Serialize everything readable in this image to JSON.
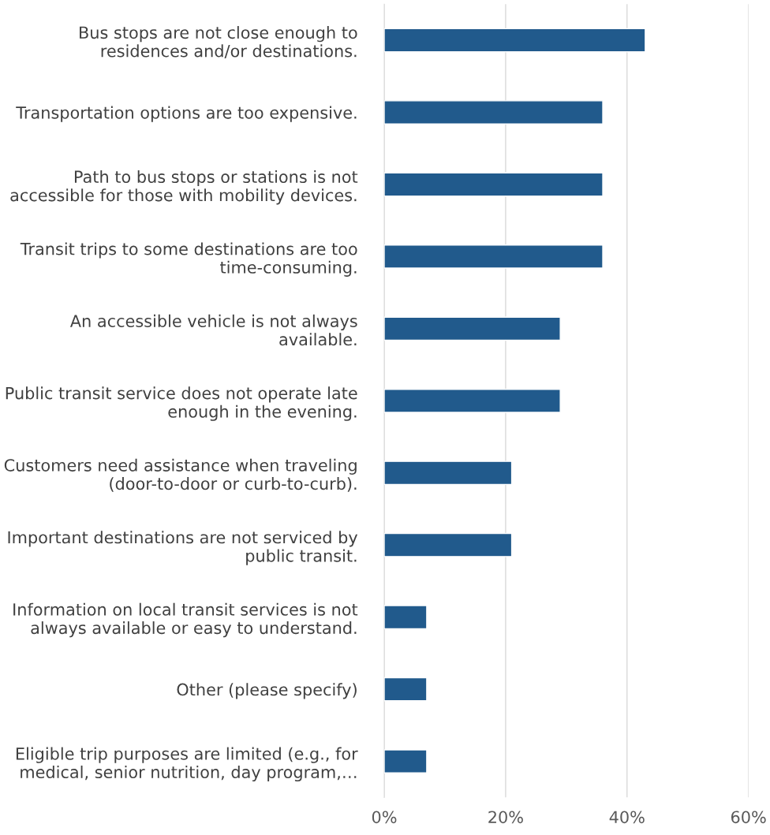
{
  "chart_data": {
    "type": "bar",
    "orientation": "horizontal",
    "categories": [
      "Bus stops are not close enough to\nresidences and/or destinations.",
      "Transportation options are too expensive.",
      "Path to bus stops or stations is not\naccessible for those with mobility devices.",
      "Transit trips to some destinations are too\ntime-consuming.",
      "An accessible vehicle is not always\navailable.",
      "Public transit service does not operate late\nenough in the evening.",
      "Customers need assistance when traveling\n(door-to-door or curb-to-curb).",
      "Important destinations are not serviced by\npublic transit.",
      "Information on local transit services is not\nalways available or easy to understand.",
      "Other (please specify)",
      "Eligible trip purposes are limited (e.g., for\nmedical, senior nutrition, day program,…"
    ],
    "values": [
      43,
      36,
      36,
      36,
      29,
      29,
      21,
      21,
      7,
      7,
      7
    ],
    "color": "#215a8c",
    "xlim": [
      0,
      60
    ],
    "xticks": [
      {
        "value": 0,
        "label": "0%"
      },
      {
        "value": 20,
        "label": "20%"
      },
      {
        "value": 40,
        "label": "40%"
      },
      {
        "value": 60,
        "label": "60%"
      }
    ],
    "grid": "x"
  }
}
